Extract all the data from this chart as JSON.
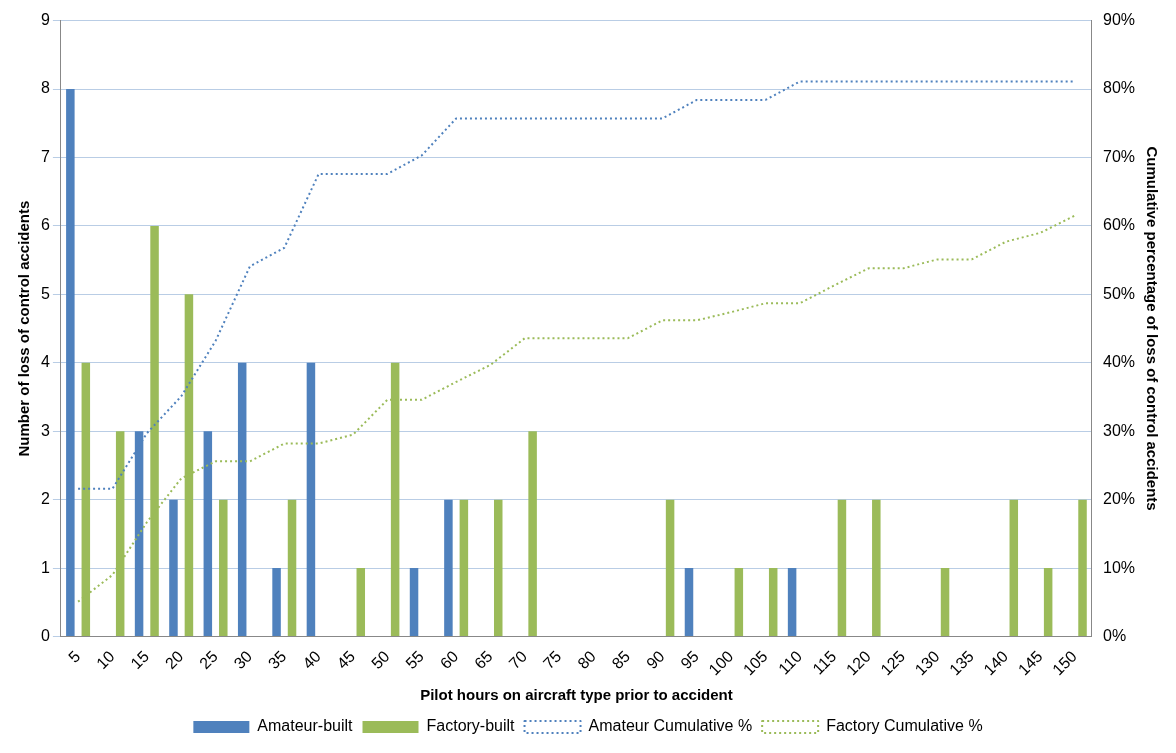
{
  "chart_data": {
    "type": "bar",
    "xlabel": "Pilot hours on aircraft type prior to accident",
    "ylabel": "Number of loss of control accidents",
    "y2label": "Cumulative percentage of loss of control accidents",
    "categories": [
      "5",
      "10",
      "15",
      "20",
      "25",
      "30",
      "35",
      "40",
      "45",
      "50",
      "55",
      "60",
      "65",
      "70",
      "75",
      "80",
      "85",
      "90",
      "95",
      "100",
      "105",
      "110",
      "115",
      "120",
      "125",
      "130",
      "135",
      "140",
      "145",
      "150"
    ],
    "series": [
      {
        "name": "Amateur-built",
        "color": "#4f81bd",
        "values": [
          8,
          0,
          3,
          2,
          3,
          4,
          1,
          4,
          0,
          0,
          1,
          2,
          0,
          0,
          0,
          0,
          0,
          0,
          1,
          0,
          0,
          1,
          0,
          0,
          0,
          0,
          0,
          0,
          0,
          0
        ]
      },
      {
        "name": "Factory-built",
        "color": "#9bbb59",
        "values": [
          4,
          3,
          6,
          5,
          2,
          0,
          2,
          0,
          1,
          4,
          0,
          2,
          2,
          3,
          0,
          0,
          0,
          2,
          0,
          1,
          1,
          0,
          2,
          2,
          0,
          1,
          0,
          2,
          1,
          2
        ]
      },
      {
        "name": "Amateur Cumulative %",
        "type": "line",
        "axis": "y2",
        "line_style": "dotted",
        "color": "#4f81bd",
        "values": [
          21.6,
          21.6,
          29.7,
          35.1,
          43.2,
          54.1,
          56.8,
          67.6,
          67.6,
          67.6,
          70.3,
          75.7,
          75.7,
          75.7,
          75.7,
          75.7,
          75.7,
          75.7,
          78.4,
          78.4,
          78.4,
          81.1,
          81.1,
          81.1,
          81.1,
          81.1,
          81.1,
          81.1,
          81.1,
          81.1
        ]
      },
      {
        "name": "Factory Cumulative %",
        "type": "line",
        "axis": "y2",
        "line_style": "dotted",
        "color": "#9bbb59",
        "values": [
          5.1,
          9.0,
          16.7,
          23.1,
          25.6,
          25.6,
          28.2,
          28.2,
          29.5,
          34.6,
          34.6,
          37.2,
          39.7,
          43.6,
          43.6,
          43.6,
          43.6,
          46.2,
          46.2,
          47.4,
          48.7,
          48.7,
          51.3,
          53.8,
          53.8,
          55.1,
          55.1,
          57.7,
          59.0,
          61.5
        ]
      }
    ],
    "ylim": [
      0,
      9
    ],
    "yticks": [
      0,
      1,
      2,
      3,
      4,
      5,
      6,
      7,
      8,
      9
    ],
    "y2lim": [
      0,
      90
    ],
    "y2ticks": [
      {
        "value": 0,
        "label": "0%"
      },
      {
        "value": 10,
        "label": "10%"
      },
      {
        "value": 20,
        "label": "20%"
      },
      {
        "value": 30,
        "label": "30%"
      },
      {
        "value": 40,
        "label": "40%"
      },
      {
        "value": 50,
        "label": "50%"
      },
      {
        "value": 60,
        "label": "60%"
      },
      {
        "value": 70,
        "label": "70%"
      },
      {
        "value": 80,
        "label": "80%"
      },
      {
        "value": 90,
        "label": "90%"
      }
    ],
    "grid": "y",
    "legend": "bottom"
  }
}
